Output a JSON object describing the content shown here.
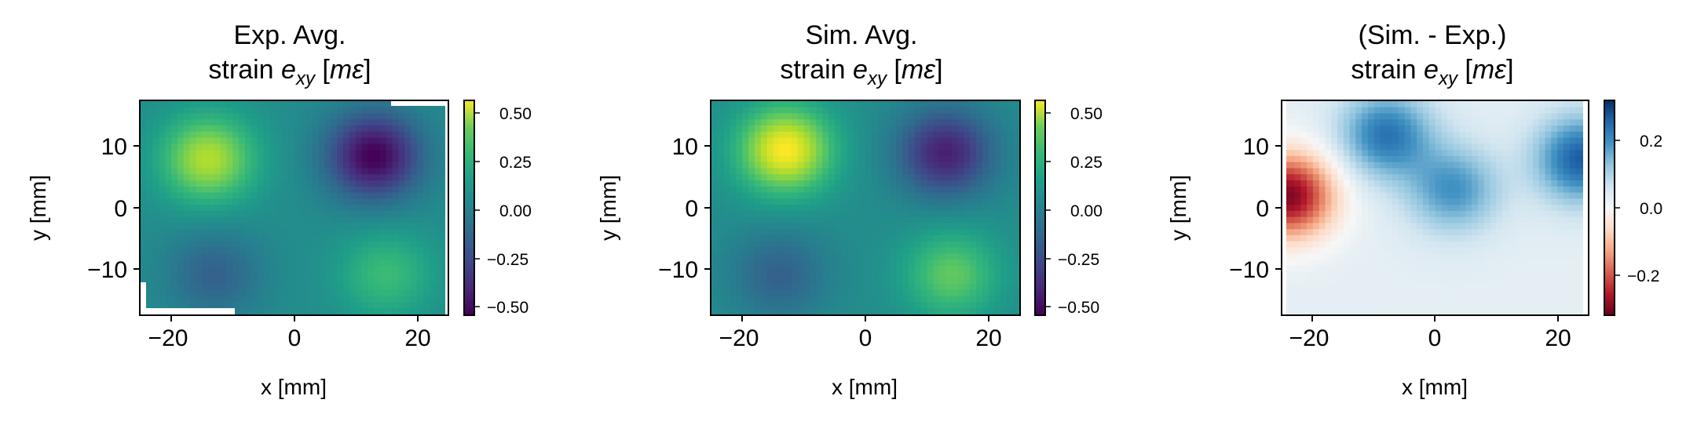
{
  "panels": [
    {
      "title_line1": "Exp. Avg.",
      "title_line2_prefix": "strain ",
      "title_symbol": "e",
      "title_subscript": "xy",
      "title_unit_open": " [",
      "title_unit": "mε",
      "title_unit_close": "]",
      "xlabel": "x [mm]",
      "ylabel": "y [mm]",
      "x_ticks": [
        "−20",
        "0",
        "20"
      ],
      "y_ticks": [
        "10",
        "0",
        "−10"
      ],
      "colorbar_ticks": [
        "0.50",
        "0.25",
        "0.00",
        "−0.25",
        "−0.50"
      ],
      "colormap": "viridis"
    },
    {
      "title_line1": "Sim. Avg.",
      "title_line2_prefix": "strain ",
      "title_symbol": "e",
      "title_subscript": "xy",
      "title_unit_open": " [",
      "title_unit": "mε",
      "title_unit_close": "]",
      "xlabel": "x [mm]",
      "ylabel": "y [mm]",
      "x_ticks": [
        "−20",
        "0",
        "20"
      ],
      "y_ticks": [
        "10",
        "0",
        "−10"
      ],
      "colorbar_ticks": [
        "0.50",
        "0.25",
        "0.00",
        "−0.25",
        "−0.50"
      ],
      "colormap": "viridis"
    },
    {
      "title_line1": "(Sim. - Exp.)",
      "title_line2_prefix": "strain ",
      "title_symbol": "e",
      "title_subscript": "xy",
      "title_unit_open": " [",
      "title_unit": "mε",
      "title_unit_close": "]",
      "xlabel": "x [mm]",
      "ylabel": "y [mm]",
      "x_ticks": [
        "−20",
        "0",
        "20"
      ],
      "y_ticks": [
        "10",
        "0",
        "−10"
      ],
      "colorbar_ticks": [
        "0.2",
        "0.0",
        "−0.2"
      ],
      "colormap": "RdBu"
    }
  ],
  "chart_data": [
    {
      "type": "heatmap",
      "title": "Exp. Avg. strain e_xy [mε]",
      "xlabel": "x [mm]",
      "ylabel": "y [mm]",
      "xlim": [
        -25,
        25
      ],
      "ylim": [
        -17.5,
        17.5
      ],
      "colormap": "viridis",
      "clim": [
        -0.55,
        0.58
      ],
      "colorbar_ticks": [
        0.5,
        0.25,
        0.0,
        -0.25,
        -0.5
      ],
      "features": [
        {
          "x": -14,
          "y": 8,
          "value": 0.45
        },
        {
          "x": 13,
          "y": 8.5,
          "value": -0.55
        },
        {
          "x": -13,
          "y": -11,
          "value": -0.2
        },
        {
          "x": 15,
          "y": -11,
          "value": 0.22
        }
      ],
      "background_value": 0.0
    },
    {
      "type": "heatmap",
      "title": "Sim. Avg. strain e_xy [mε]",
      "xlabel": "x [mm]",
      "ylabel": "y [mm]",
      "xlim": [
        -25,
        25
      ],
      "ylim": [
        -17.5,
        17.5
      ],
      "colormap": "viridis",
      "clim": [
        -0.55,
        0.58
      ],
      "colorbar_ticks": [
        0.5,
        0.25,
        0.0,
        -0.25,
        -0.5
      ],
      "features": [
        {
          "x": -13,
          "y": 9.5,
          "value": 0.58
        },
        {
          "x": 13,
          "y": 9,
          "value": -0.45
        },
        {
          "x": -14,
          "y": -11,
          "value": -0.2
        },
        {
          "x": 14,
          "y": -11,
          "value": 0.3
        }
      ],
      "background_value": 0.0
    },
    {
      "type": "heatmap",
      "title": "(Sim. - Exp.) strain e_xy [mε]",
      "xlabel": "x [mm]",
      "ylabel": "y [mm]",
      "xlim": [
        -25,
        25
      ],
      "ylim": [
        -17.5,
        17.5
      ],
      "colormap": "RdBu",
      "clim": [
        -0.3,
        0.3
      ],
      "colorbar_ticks": [
        0.2,
        0.0,
        -0.2
      ],
      "features": [
        {
          "x": -8,
          "y": 12,
          "value": 0.22
        },
        {
          "x": 3,
          "y": 3,
          "value": 0.18
        },
        {
          "x": -24,
          "y": 2,
          "value": -0.28
        },
        {
          "x": 24,
          "y": 8,
          "value": 0.25
        }
      ],
      "background_value": 0.03
    }
  ]
}
